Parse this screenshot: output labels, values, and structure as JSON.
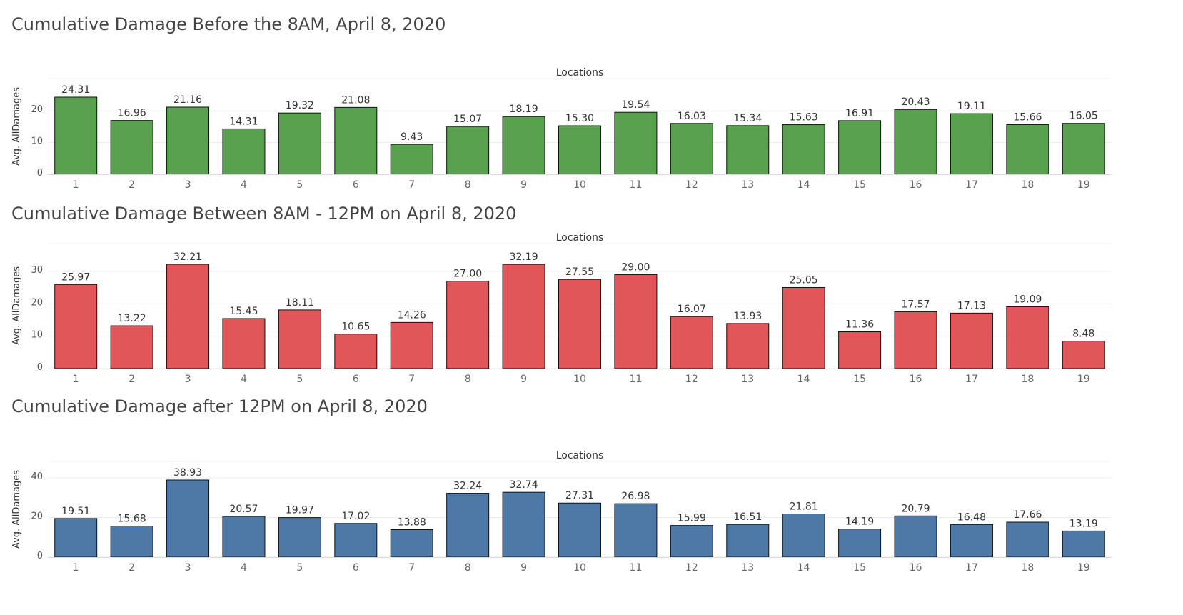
{
  "chart_data": [
    {
      "type": "bar",
      "title": "Cumulative Damage Before the 8AM, April 8, 2020",
      "xlabel": "Locations",
      "ylabel": "Avg. AllDamages",
      "color": "#59a14f",
      "categories": [
        "1",
        "2",
        "3",
        "4",
        "5",
        "6",
        "7",
        "8",
        "9",
        "10",
        "11",
        "12",
        "13",
        "14",
        "15",
        "16",
        "17",
        "18",
        "19"
      ],
      "values": [
        24.31,
        16.96,
        21.16,
        14.31,
        19.32,
        21.08,
        9.43,
        15.07,
        18.19,
        15.3,
        19.54,
        16.03,
        15.34,
        15.63,
        16.91,
        20.43,
        19.11,
        15.66,
        16.05
      ],
      "value_labels": [
        "24.31",
        "16.96",
        "21.16",
        "14.31",
        "19.32",
        "21.08",
        "9.43",
        "15.07",
        "18.19",
        "15.30",
        "19.54",
        "16.03",
        "15.34",
        "15.63",
        "16.91",
        "20.43",
        "19.11",
        "15.66",
        "16.05"
      ],
      "yticks": [
        0,
        10,
        20
      ],
      "ylim": [
        0,
        24.31
      ],
      "grid": true
    },
    {
      "type": "bar",
      "title": "Cumulative Damage Between 8AM - 12PM on April 8, 2020",
      "xlabel": "Locations",
      "ylabel": "Avg. AllDamages",
      "color": "#e15759",
      "categories": [
        "1",
        "2",
        "3",
        "4",
        "5",
        "6",
        "7",
        "8",
        "9",
        "10",
        "11",
        "12",
        "13",
        "14",
        "15",
        "16",
        "17",
        "18",
        "19"
      ],
      "values": [
        25.97,
        13.22,
        32.21,
        15.45,
        18.11,
        10.65,
        14.26,
        27.0,
        32.19,
        27.55,
        29.0,
        16.07,
        13.93,
        25.05,
        11.36,
        17.57,
        17.13,
        19.09,
        8.48
      ],
      "value_labels": [
        "25.97",
        "13.22",
        "32.21",
        "15.45",
        "18.11",
        "10.65",
        "14.26",
        "27.00",
        "32.19",
        "27.55",
        "29.00",
        "16.07",
        "13.93",
        "25.05",
        "11.36",
        "17.57",
        "17.13",
        "19.09",
        "8.48"
      ],
      "yticks": [
        0,
        10,
        20,
        30
      ],
      "ylim": [
        0,
        32.21
      ],
      "grid": true
    },
    {
      "type": "bar",
      "title": "Cumulative Damage after 12PM on April 8, 2020",
      "xlabel": "Locations",
      "ylabel": "Avg. AllDamages",
      "color": "#4e79a7",
      "categories": [
        "1",
        "2",
        "3",
        "4",
        "5",
        "6",
        "7",
        "8",
        "9",
        "10",
        "11",
        "12",
        "13",
        "14",
        "15",
        "16",
        "17",
        "18",
        "19"
      ],
      "values": [
        19.51,
        15.68,
        38.93,
        20.57,
        19.97,
        17.02,
        13.88,
        32.24,
        32.74,
        27.31,
        26.98,
        15.99,
        16.51,
        21.81,
        14.19,
        20.79,
        16.48,
        17.66,
        13.19
      ],
      "value_labels": [
        "19.51",
        "15.68",
        "38.93",
        "20.57",
        "19.97",
        "17.02",
        "13.88",
        "32.24",
        "32.74",
        "27.31",
        "26.98",
        "15.99",
        "16.51",
        "21.81",
        "14.19",
        "20.79",
        "16.48",
        "17.66",
        "13.19"
      ],
      "yticks": [
        0,
        20,
        40
      ],
      "ylim": [
        0,
        38.93
      ],
      "grid": true
    }
  ]
}
